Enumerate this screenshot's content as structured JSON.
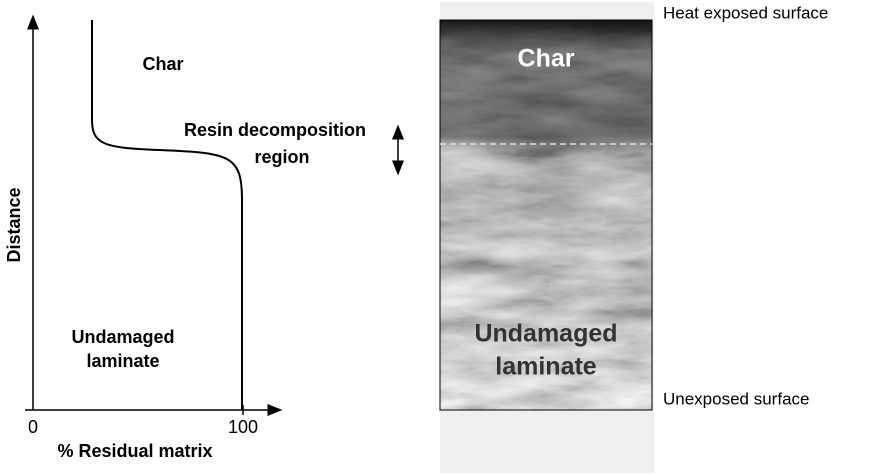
{
  "plot": {
    "y_label": "Distance",
    "x_label": "% Residual matrix",
    "x_ticks": [
      "0",
      "100"
    ],
    "regions": {
      "char": "Char",
      "resin": [
        "Resin decomposition",
        "region"
      ],
      "undamaged": [
        "Undamaged",
        "laminate"
      ]
    }
  },
  "photo": {
    "top_label": "Heat exposed surface",
    "bottom_label": "Unexposed surface",
    "char": "Char",
    "undamaged": [
      "Undamaged",
      "laminate"
    ]
  }
}
